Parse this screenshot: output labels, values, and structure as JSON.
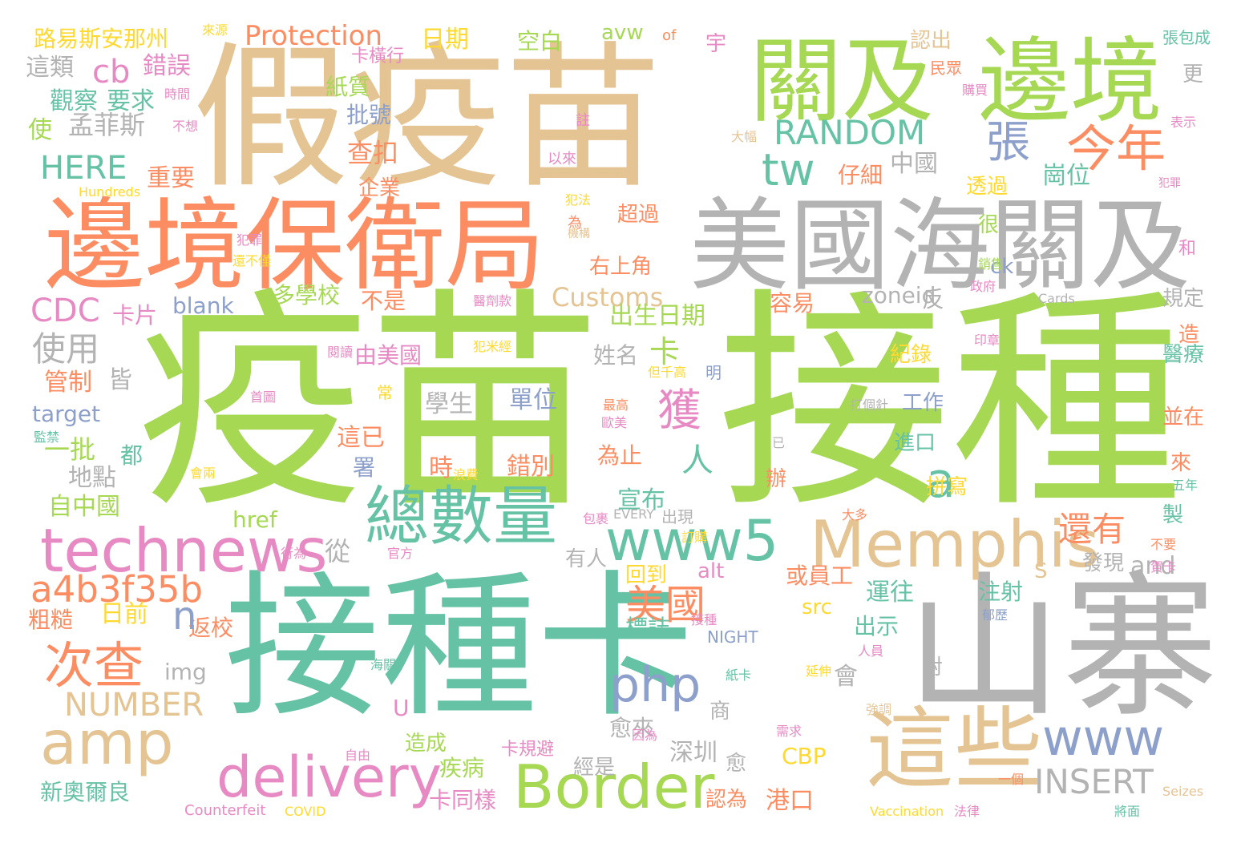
{
  "palette": {
    "green": "#a6d854",
    "teal": "#66c2a5",
    "orange": "#fc8d62",
    "tan": "#e5c494",
    "gray": "#b3b3b3",
    "blue": "#8da0cb",
    "pink": "#e78ac3",
    "yellow": "#ffd92f"
  },
  "words": [
    "疫苗",
    "接種",
    "假疫苗",
    "接種卡",
    "山寨",
    "邊境保衛局",
    "美國海關及",
    "關及",
    "邊境",
    "這些",
    "總數量",
    "Memphis",
    "www5",
    "technews",
    "Border",
    "amp",
    "delivery",
    "php",
    "今年",
    "次查",
    "www",
    "a4b3f35b",
    "NUMBER",
    "RANDOM",
    "INSERT",
    "Protection",
    "Customs",
    "tw",
    "張",
    "獲",
    "路易斯安那州",
    "日期",
    "空白",
    "avw",
    "cb",
    "HERE",
    "CDC",
    "使用",
    "孟菲斯",
    "錯誤",
    "觀察",
    "要求",
    "這類",
    "使",
    "紙質",
    "批號",
    "查扣",
    "重要",
    "管制",
    "皆",
    "target",
    "一批",
    "地點",
    "自中國",
    "href",
    "從",
    "粗糙",
    "返校",
    "日前",
    "美國",
    "n",
    "a",
    "人",
    "學生",
    "單位",
    "時",
    "錯別",
    "這已",
    "都",
    "署",
    "出生日期",
    "姓名",
    "卡",
    "宣布",
    "為止",
    "愈來",
    "經是",
    "深圳",
    "新奧爾良",
    "卡同樣",
    "疾病",
    "造成",
    "blank",
    "多學校",
    "不是",
    "由美國",
    "卡片",
    "zoneid",
    "反",
    "容易",
    "紀錄",
    "工作",
    "進口",
    "辦",
    "拼寫",
    "還有",
    "S",
    "發現",
    "and",
    "運往",
    "注射",
    "製",
    "並在",
    "來",
    "醫療",
    "造",
    "規定",
    "和",
    "更",
    "出示",
    "標誌",
    "src",
    "CBP",
    "港口",
    "認為",
    "會",
    "對",
    "img",
    "U",
    "商",
    "愈",
    "卡規避",
    "alt",
    "有人",
    "回到",
    "或員工",
    "中國",
    "仔細",
    "企業",
    "透過",
    "崗位",
    "超過",
    "右上角",
    "很",
    "ck",
    "認出",
    "宇",
    "卡橫行",
    "張包成",
    "民眾",
    "of",
    "購買",
    "時間",
    "註",
    "以來",
    "犯法",
    "表示",
    "Hundreds",
    "為",
    "犯罪",
    "還不僅",
    "銷售",
    "政府",
    "Cards",
    "印章",
    "閱讀",
    "醫劑款",
    "犯米經",
    "但千高",
    "明",
    "首圖",
    "常",
    "最高",
    "監禁",
    "打個針",
    "已",
    "歐美",
    "浪費",
    "會兩",
    "包裹",
    "EVERY",
    "訂購",
    "出現",
    "大多",
    "不要",
    "五年",
    "賀卡",
    "將面",
    "Seizes",
    "法律",
    "Vaccination",
    "COVID",
    "Counterfeit",
    "自由",
    "因為",
    "需求",
    "強調",
    "一個",
    "海關",
    "NIGHT",
    "紙卡",
    "延伸",
    "人員",
    "郁歷",
    "官方",
    "行為",
    "接種",
    "不想",
    "來源",
    "大幅",
    "機構",
    "犯罪",
    "傷害"
  ]
}
